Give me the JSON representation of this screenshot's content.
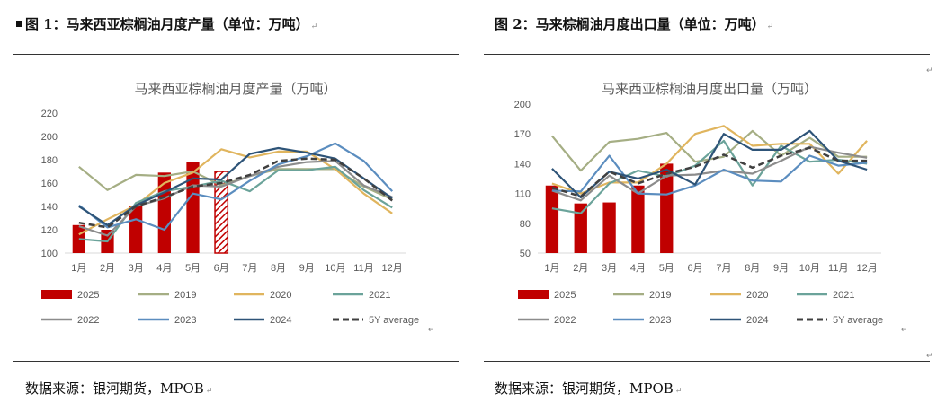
{
  "fig1": {
    "caption": "图 1：马来西亚棕榈油月度产量（单位：万吨）",
    "source": "数据来源：银河期货，MPOB"
  },
  "fig2": {
    "caption": "图 2：马来棕榈油月度出口量（单位：万吨）",
    "source": "数据来源：银河期货，MPOB"
  },
  "colors": {
    "2025": "#C00000",
    "2019": "#A5AE84",
    "2020": "#E0B55E",
    "2021": "#6BA39A",
    "2022": "#8C8C8C",
    "2023": "#5B8DBF",
    "2024": "#2E5478",
    "5Y average": "#404040"
  },
  "chart_data": [
    {
      "type": "bar+line",
      "title": "马来西亚棕榈油月度产量（万吨）",
      "categories": [
        "1月",
        "2月",
        "3月",
        "4月",
        "5月",
        "6月",
        "7月",
        "8月",
        "9月",
        "10月",
        "11月",
        "12月"
      ],
      "ylim": [
        100,
        220
      ],
      "yticks": [
        100,
        120,
        140,
        160,
        180,
        200,
        220
      ],
      "bar_series": {
        "name": "2025",
        "values": [
          124,
          120,
          140,
          169,
          178,
          170
        ],
        "estimated_index": 5
      },
      "series": [
        {
          "name": "2019",
          "values": [
            174,
            154,
            167,
            166,
            170,
            158,
            166,
            172,
            172,
            172,
            157,
            146
          ]
        },
        {
          "name": "2020",
          "values": [
            116,
            129,
            141,
            160,
            169,
            189,
            182,
            187,
            187,
            172,
            151,
            134
          ]
        },
        {
          "name": "2021",
          "values": [
            112,
            110,
            143,
            153,
            157,
            162,
            153,
            171,
            171,
            174,
            154,
            139
          ]
        },
        {
          "name": "2022",
          "values": [
            123,
            115,
            140,
            147,
            158,
            157,
            166,
            174,
            178,
            179,
            158,
            148
          ]
        },
        {
          "name": "2023",
          "values": [
            141,
            122,
            129,
            120,
            151,
            146,
            162,
            176,
            183,
            194,
            179,
            153
          ]
        },
        {
          "name": "2024",
          "values": [
            140,
            124,
            141,
            152,
            164,
            163,
            185,
            190,
            186,
            181,
            164,
            147
          ]
        },
        {
          "name": "5Y average",
          "values": [
            126,
            122,
            140,
            148,
            157,
            160,
            167,
            179,
            181,
            180,
            164,
            145
          ],
          "dashed": true
        }
      ]
    },
    {
      "type": "bar+line",
      "title": "马来西亚棕榈油月度出口量（万吨）",
      "categories": [
        "1月",
        "2月",
        "3月",
        "4月",
        "5月",
        "6月",
        "7月",
        "8月",
        "9月",
        "10月",
        "11月",
        "12月"
      ],
      "ylim": [
        50,
        200
      ],
      "yticks": [
        50,
        80,
        110,
        140,
        170,
        200
      ],
      "bar_series": {
        "name": "2025",
        "values": [
          118,
          100,
          101,
          118,
          140
        ]
      },
      "series": [
        {
          "name": "2019",
          "values": [
            168,
            133,
            162,
            165,
            171,
            142,
            147,
            173,
            148,
            166,
            147,
            147
          ]
        },
        {
          "name": "2020",
          "values": [
            120,
            110,
            121,
            121,
            140,
            170,
            178,
            158,
            160,
            160,
            130,
            163
          ]
        },
        {
          "name": "2021",
          "values": [
            95,
            90,
            120,
            133,
            127,
            138,
            163,
            118,
            158,
            142,
            144,
            140
          ]
        },
        {
          "name": "2022",
          "values": [
            113,
            103,
            128,
            110,
            128,
            129,
            133,
            130,
            143,
            157,
            151,
            146
          ]
        },
        {
          "name": "2023",
          "values": [
            113,
            112,
            148,
            110,
            109,
            118,
            134,
            123,
            122,
            148,
            138,
            141
          ]
        },
        {
          "name": "2024",
          "values": [
            135,
            106,
            132,
            125,
            134,
            119,
            170,
            154,
            154,
            173,
            143,
            134
          ]
        },
        {
          "name": "5Y average",
          "values": [
            116,
            107,
            132,
            120,
            130,
            137,
            149,
            136,
            148,
            156,
            143,
            143
          ],
          "dashed": true
        }
      ]
    }
  ]
}
